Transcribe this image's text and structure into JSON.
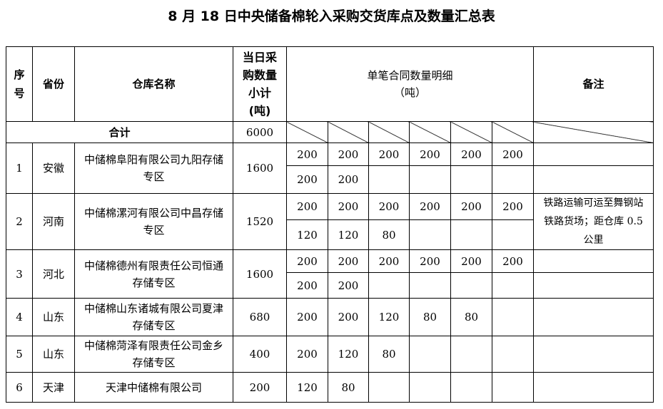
{
  "title": "8 月 18 日中央储备棉轮入采购交货库点及数量汇总表",
  "headers": {
    "seq": "序号",
    "province": "省份",
    "warehouse": "仓库名称",
    "daily_qty": "当日采购数量小计(吨)",
    "detail": "单笔合同数量明细",
    "detail_unit": "（吨）",
    "remarks": "备注"
  },
  "total": {
    "label": "合计",
    "value": "6000"
  },
  "rows": [
    {
      "seq": "1",
      "province": "安徽",
      "warehouse": "中储棉阜阳有限公司九阳存储专区",
      "qty": "1600",
      "lines": [
        [
          "200",
          "200",
          "200",
          "200",
          "200",
          "200"
        ],
        [
          "200",
          "200",
          "",
          "",
          "",
          ""
        ]
      ],
      "remark": ""
    },
    {
      "seq": "2",
      "province": "河南",
      "warehouse": "中储棉漯河有限公司中昌存储专区",
      "qty": "1520",
      "lines": [
        [
          "200",
          "200",
          "200",
          "200",
          "200",
          "200"
        ],
        [
          "120",
          "120",
          "80",
          "",
          "",
          ""
        ]
      ],
      "remark": "铁路运输可运至舞钢站铁路货场；距仓库 0.5 公里"
    },
    {
      "seq": "3",
      "province": "河北",
      "warehouse": "中储棉德州有限责任公司恒通存储专区",
      "qty": "1600",
      "lines": [
        [
          "200",
          "200",
          "200",
          "200",
          "200",
          "200"
        ],
        [
          "200",
          "200",
          "",
          "",
          "",
          ""
        ]
      ],
      "remark": ""
    },
    {
      "seq": "4",
      "province": "山东",
      "warehouse": "中储棉山东诸城有限公司夏津存储专区",
      "qty": "680",
      "lines": [
        [
          "200",
          "200",
          "120",
          "80",
          "80",
          ""
        ]
      ],
      "remark": ""
    },
    {
      "seq": "5",
      "province": "山东",
      "warehouse": "中储棉菏泽有限责任公司金乡存储专区",
      "qty": "400",
      "lines": [
        [
          "200",
          "120",
          "80",
          "",
          "",
          ""
        ]
      ],
      "remark": ""
    },
    {
      "seq": "6",
      "province": "天津",
      "warehouse": "天津中储棉有限公司",
      "qty": "200",
      "lines": [
        [
          "120",
          "80",
          "",
          "",
          "",
          ""
        ]
      ],
      "remark": ""
    }
  ]
}
